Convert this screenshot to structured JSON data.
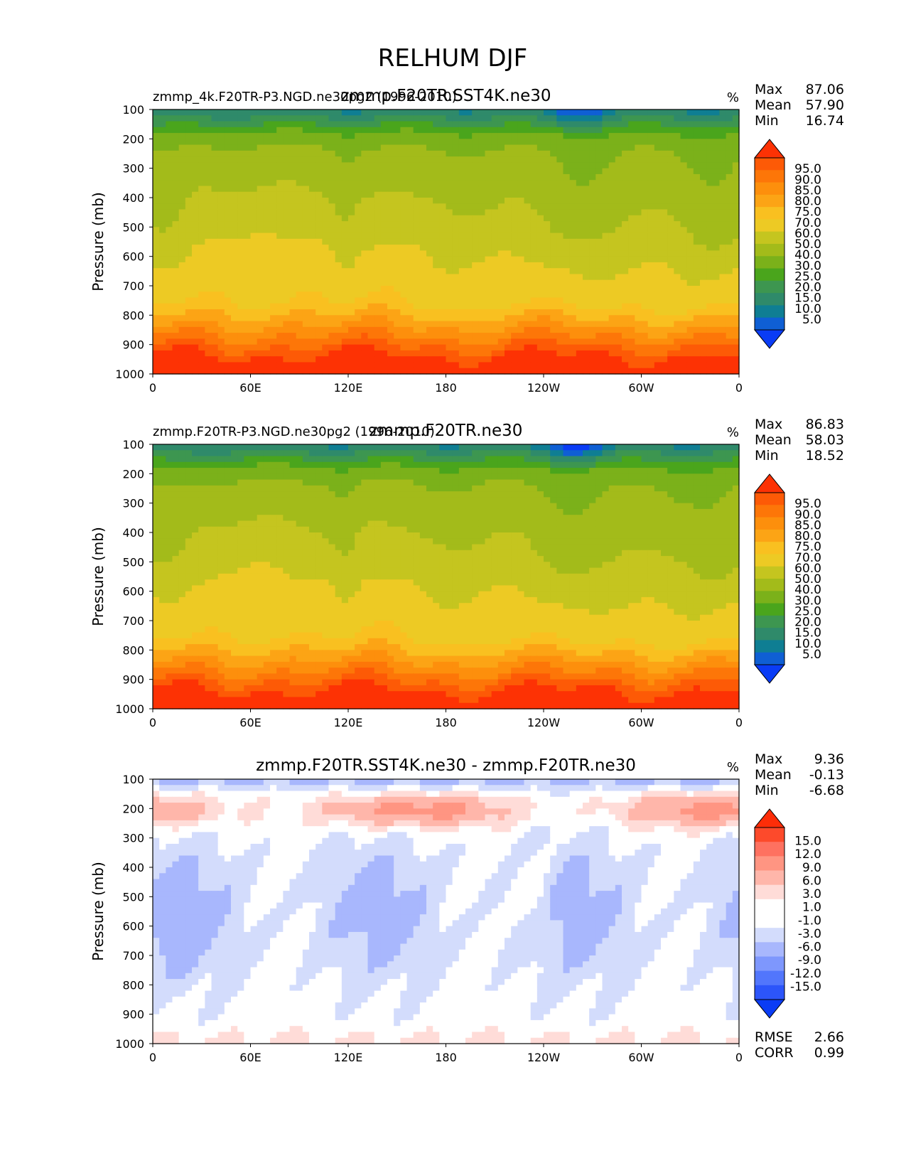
{
  "figure": {
    "title": "RELHUM DJF"
  },
  "x_ticks": [
    "0",
    "60E",
    "120E",
    "180",
    "120W",
    "60W",
    "0"
  ],
  "y_ticks": [
    "100",
    "200",
    "300",
    "400",
    "500",
    "600",
    "700",
    "800",
    "900",
    "1000"
  ],
  "colors": {
    "abs_levels": [
      "#0a3cf5",
      "#0f5fd4",
      "#0f7e93",
      "#2f8a6a",
      "#3d9650",
      "#4aa51c",
      "#7bb11a",
      "#a3bb1a",
      "#c5c51f",
      "#edca24",
      "#f9c020",
      "#fca415",
      "#fd8f0c",
      "#fd7608",
      "#fd5a06",
      "#fd3204"
    ],
    "diff_levels": [
      "#0a3cf5",
      "#2c55fa",
      "#5276fc",
      "#7e97fd",
      "#a8b7fd",
      "#d3dcfc",
      "#ffffff",
      "#ffffff",
      "#ffdcd8",
      "#ffb6aa",
      "#ff9582",
      "#fe7160",
      "#fd4a2b",
      "#fd2d08"
    ]
  },
  "chart_data": [
    {
      "type": "heatmap",
      "panel": "test",
      "left_label": "zmmp_4k.F20TR-P3.NGD.ne30pg2 (1996-2010)",
      "title": "zmmp.F20TR.SST4K.ne30",
      "units": "%",
      "ylabel": "Pressure (mb)",
      "xlim": [
        0,
        360
      ],
      "ylim": [
        1000,
        100
      ],
      "stats": {
        "max_label": "Max",
        "max": "87.06",
        "mean_label": "Mean",
        "mean": "57.90",
        "min_label": "Min",
        "min": "16.74"
      },
      "colorbar_labels": [
        "95.0",
        "90.0",
        "85.0",
        "80.0",
        "75.0",
        "70.0",
        "60.0",
        "50.0",
        "40.0",
        "30.0",
        "25.0",
        "20.0",
        "15.0",
        "10.0",
        "5.0"
      ]
    },
    {
      "type": "heatmap",
      "panel": "reference",
      "left_label": "zmmp.F20TR-P3.NGD.ne30pg2 (1996-2010)",
      "title": "zmmp.F20TR.ne30",
      "units": "%",
      "ylabel": "Pressure (mb)",
      "xlim": [
        0,
        360
      ],
      "ylim": [
        1000,
        100
      ],
      "stats": {
        "max_label": "Max",
        "max": "86.83",
        "mean_label": "Mean",
        "mean": "58.03",
        "min_label": "Min",
        "min": "18.52"
      },
      "colorbar_labels": [
        "95.0",
        "90.0",
        "85.0",
        "80.0",
        "75.0",
        "70.0",
        "60.0",
        "50.0",
        "40.0",
        "30.0",
        "25.0",
        "20.0",
        "15.0",
        "10.0",
        "5.0"
      ]
    },
    {
      "type": "heatmap",
      "panel": "difference",
      "left_label": "",
      "title": "zmmp.F20TR.SST4K.ne30 - zmmp.F20TR.ne30",
      "units": "%",
      "ylabel": "Pressure (mb)",
      "xlim": [
        0,
        360
      ],
      "ylim": [
        1000,
        100
      ],
      "stats": {
        "max_label": "Max",
        "max": "9.36",
        "mean_label": "Mean",
        "mean": "-0.13",
        "min_label": "Min",
        "min": "-6.68"
      },
      "extra_stats": {
        "rmse_label": "RMSE",
        "rmse": "2.66",
        "corr_label": "CORR",
        "corr": "0.99"
      },
      "colorbar_labels": [
        "15.0",
        "12.0",
        "9.0",
        "6.0",
        "3.0",
        "1.0",
        "-1.0",
        "-3.0",
        "-6.0",
        "-9.0",
        "-12.0",
        "-15.0"
      ]
    }
  ]
}
